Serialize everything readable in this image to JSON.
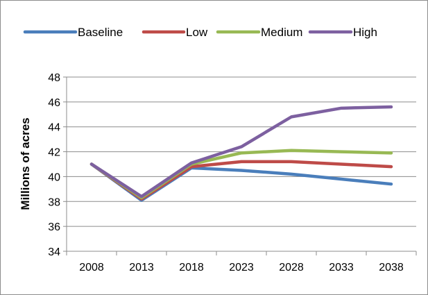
{
  "chart_data": {
    "type": "line",
    "title": "",
    "xlabel": "",
    "ylabel": "Millions of acres",
    "categories": [
      "2008",
      "2013",
      "2018",
      "2023",
      "2028",
      "2033",
      "2038"
    ],
    "ylim": [
      34,
      48
    ],
    "yticks": [
      "34",
      "36",
      "38",
      "40",
      "42",
      "44",
      "46",
      "48"
    ],
    "grid": true,
    "legend_position": "top",
    "series": [
      {
        "name": "Baseline",
        "color": "#4a7ebb",
        "values": [
          41.0,
          38.1,
          40.7,
          40.5,
          40.2,
          39.8,
          39.4
        ]
      },
      {
        "name": "Low",
        "color": "#be4b48",
        "values": [
          41.0,
          38.2,
          40.8,
          41.2,
          41.2,
          41.0,
          40.8
        ]
      },
      {
        "name": "Medium",
        "color": "#98b954",
        "values": [
          41.0,
          38.3,
          41.0,
          41.9,
          42.1,
          42.0,
          41.9
        ]
      },
      {
        "name": "High",
        "color": "#7d60a0",
        "values": [
          41.0,
          38.4,
          41.1,
          42.4,
          44.8,
          45.5,
          45.6
        ]
      }
    ]
  }
}
